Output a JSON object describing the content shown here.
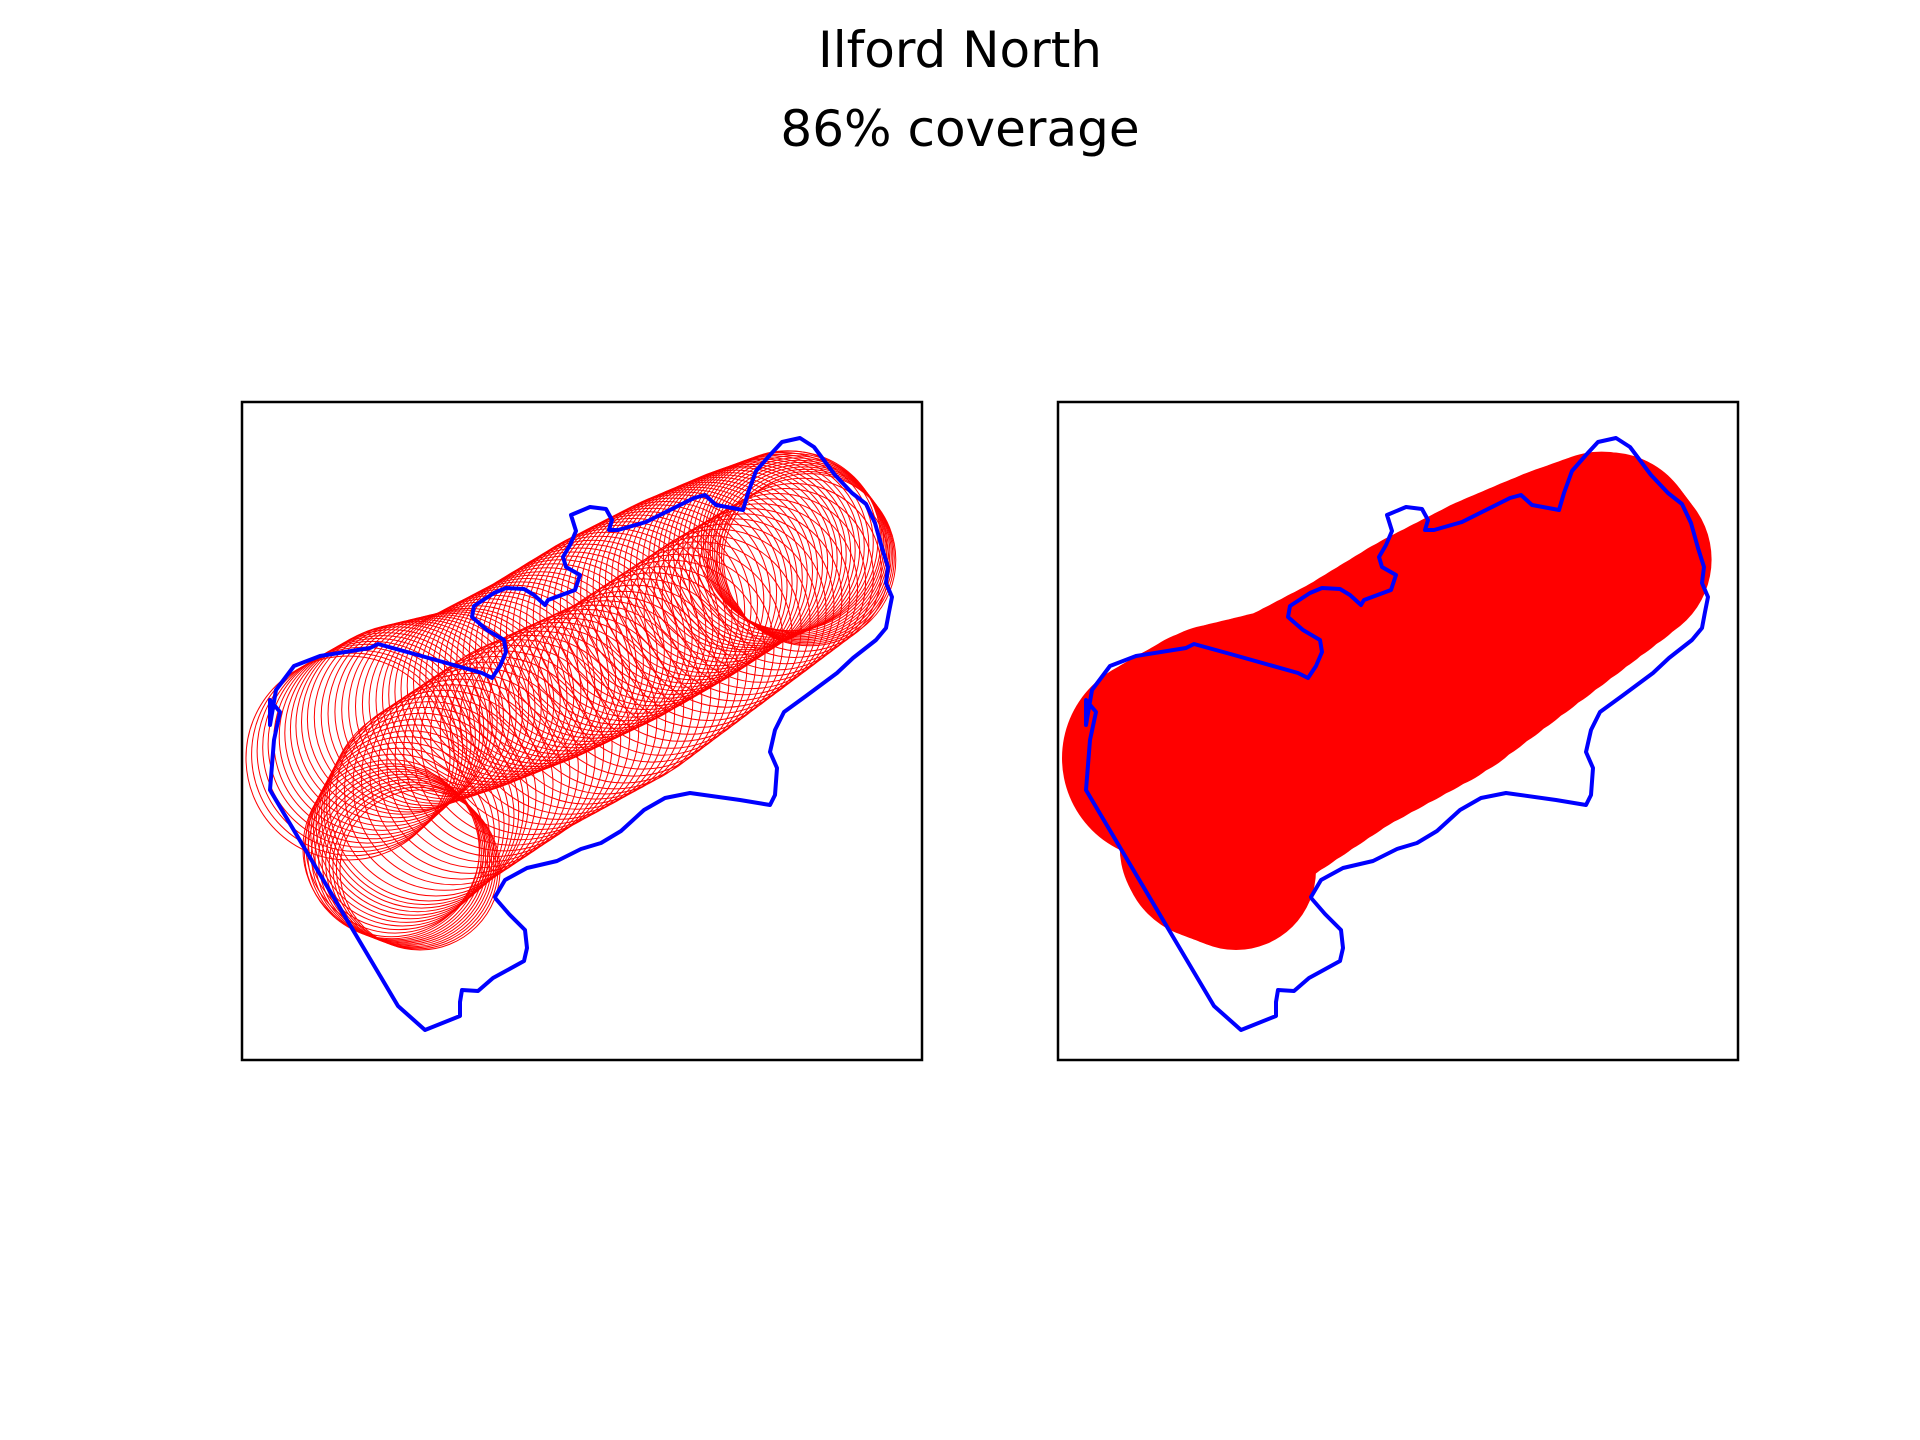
{
  "title": "Ilford North",
  "subtitle": "86% coverage",
  "colors": {
    "boundary": "#0000ff",
    "coverage": "#ff0000",
    "frame": "#000000",
    "background": "#ffffff"
  },
  "panels": [
    {
      "name": "outline-circles",
      "style": "circle-outlines"
    },
    {
      "name": "filled-circles",
      "style": "filled-union"
    }
  ]
}
